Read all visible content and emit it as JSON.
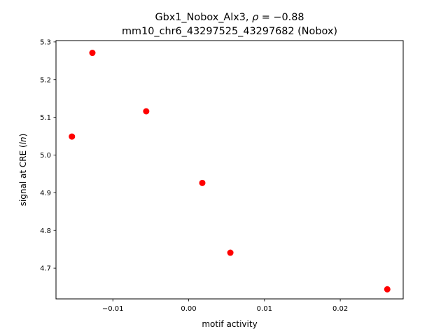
{
  "chart_data": {
    "type": "scatter",
    "title_line1": "Gbx1_Nobox_Alx3, ",
    "title_rho_symbol": "ρ",
    "title_rho_value": " = −0.88",
    "title_line2": "mm10_chr6_43297525_43297682 (Nobox)",
    "xlabel": "motif activity",
    "ylabel_prefix": "signal at CRE (",
    "ylabel_italic": "ln",
    "ylabel_suffix": ")",
    "xlim": [
      -0.0175,
      0.0283
    ],
    "ylim": [
      4.6185,
      5.3035
    ],
    "xticks": [
      {
        "value": -0.01,
        "label": "−0.01"
      },
      {
        "value": 0.0,
        "label": "0.00"
      },
      {
        "value": 0.01,
        "label": "0.01"
      },
      {
        "value": 0.02,
        "label": "0.02"
      }
    ],
    "yticks": [
      {
        "value": 4.7,
        "label": "4.7"
      },
      {
        "value": 4.8,
        "label": "4.8"
      },
      {
        "value": 4.9,
        "label": "4.9"
      },
      {
        "value": 5.0,
        "label": "5.0"
      },
      {
        "value": 5.1,
        "label": "5.1"
      },
      {
        "value": 5.2,
        "label": "5.2"
      },
      {
        "value": 5.3,
        "label": "5.3"
      }
    ],
    "points": [
      {
        "x": -0.0154,
        "y": 5.049
      },
      {
        "x": -0.0127,
        "y": 5.271
      },
      {
        "x": -0.0056,
        "y": 5.116
      },
      {
        "x": 0.0018,
        "y": 4.926
      },
      {
        "x": 0.0055,
        "y": 4.741
      },
      {
        "x": 0.0262,
        "y": 4.644
      }
    ],
    "marker_color": "#ff0000",
    "grid": false
  }
}
